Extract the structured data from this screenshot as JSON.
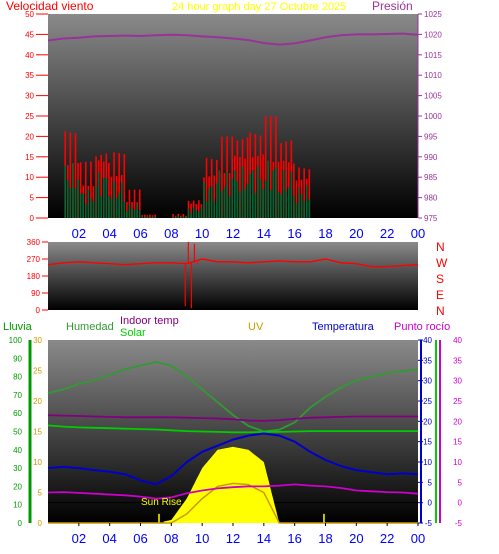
{
  "header": {
    "left_label": "Velocidad viento",
    "center_label": "24 hour graph day   27 Octubre 2025",
    "right_label": "Presión"
  },
  "colors": {
    "wind": "#ff0000",
    "gust": "#ff0000",
    "pressure": "#993399",
    "direction": "#ff0000",
    "compass": "#ff0000",
    "rain": "#009900",
    "humidity": "#339933",
    "indoor_temp": "#800080",
    "solar": "#00cc00",
    "uv": "#cc9900",
    "temperature": "#0000cc",
    "dewpoint": "#cc00cc",
    "sun": "#ffff00",
    "hours": "#0000ff",
    "background_top": "#808080",
    "background_bottom": "#000000"
  },
  "hours": [
    "02",
    "04",
    "06",
    "08",
    "10",
    "12",
    "14",
    "16",
    "18",
    "20",
    "22",
    "00"
  ],
  "top_panel": {
    "left_ticks": [
      "0",
      "5",
      "10",
      "15",
      "20",
      "25",
      "30",
      "35",
      "40",
      "45",
      "50"
    ],
    "right_ticks": [
      "975",
      "980",
      "985",
      "990",
      "995",
      "1000",
      "1005",
      "1010",
      "1015",
      "1020",
      "1025"
    ]
  },
  "dir_panel": {
    "left_ticks": [
      "0",
      "90",
      "180",
      "270",
      "360"
    ],
    "compass": [
      "N",
      "W",
      "S",
      "E",
      "N"
    ]
  },
  "bottom_panel": {
    "legend": {
      "rain": "Lluvia",
      "humidity": "Humedad",
      "indoor": "Indoor temp",
      "solar": "Solar",
      "uv": "UV",
      "temperature": "Temperatura",
      "dewpoint": "Punto rocío"
    },
    "rain_ticks": [
      "0",
      "10",
      "20",
      "30",
      "40",
      "50",
      "60",
      "70",
      "80",
      "90",
      "100"
    ],
    "uv_ticks": [
      "0",
      "5",
      "10",
      "15",
      "20",
      "25",
      "30"
    ],
    "temp_ticks": [
      "-5",
      "0",
      "5",
      "10",
      "15",
      "20",
      "25",
      "30",
      "35",
      "40"
    ],
    "sunrise_label": "Sun Rise"
  },
  "chart_data": [
    {
      "type": "line",
      "x_unit": "hour of day",
      "x": [
        0,
        1,
        2,
        3,
        4,
        5,
        6,
        7,
        8,
        9,
        10,
        11,
        12,
        13,
        14,
        15,
        16,
        17,
        18,
        19,
        20,
        21,
        22,
        23,
        24
      ],
      "ylim_left": [
        0,
        50
      ],
      "ylim_right": [
        975,
        1025
      ],
      "series": [
        {
          "axis": "left",
          "style": "bars",
          "values": [
            0,
            15,
            8,
            13,
            10,
            4,
            0.5,
            0,
            0.5,
            3,
            10,
            13,
            14,
            15,
            16,
            13,
            9,
            0,
            0,
            0,
            0,
            0,
            0,
            0,
            0
          ]
        },
        {
          "axis": "left",
          "style": "bars",
          "values": [
            0,
            22,
            14,
            19,
            17,
            7,
            1,
            0,
            1,
            5,
            16,
            20,
            22,
            23,
            25,
            21,
            14,
            0,
            0,
            0,
            0,
            0,
            0,
            0,
            0
          ]
        },
        {
          "axis": "right",
          "style": "line",
          "values": [
            1018.5,
            1019.0,
            1019.2,
            1019.5,
            1019.6,
            1019.7,
            1019.6,
            1019.8,
            1019.9,
            1019.8,
            1019.5,
            1019.3,
            1019.0,
            1018.6,
            1017.9,
            1017.5,
            1017.8,
            1018.5,
            1019.3,
            1019.8,
            1020.0,
            1020.0,
            1020.1,
            1020.2,
            1019.9
          ]
        }
      ]
    },
    {
      "type": "line",
      "x_unit": "hour of day",
      "ylim": [
        0,
        360
      ],
      "series": [
        {
          "values": [
            240,
            250,
            255,
            250,
            245,
            240,
            245,
            250,
            250,
            245,
            270,
            255,
            255,
            250,
            255,
            260,
            255,
            255,
            270,
            250,
            245,
            230,
            230,
            235,
            240
          ]
        }
      ]
    },
    {
      "type": "line",
      "x_unit": "hour of day",
      "ylim_rain": [
        0,
        100
      ],
      "ylim_uv": [
        0,
        30
      ],
      "ylim_temp": [
        -5,
        40
      ],
      "series": [
        {
          "axis": "rain",
          "values": [
            71,
            73,
            76,
            78,
            81,
            84,
            86,
            88,
            86,
            80,
            73,
            66,
            59,
            53,
            50,
            51,
            55,
            63,
            69,
            74,
            78,
            80,
            82,
            83,
            84
          ]
        },
        {
          "axis": "temp",
          "values": [
            21.5,
            21.4,
            21.3,
            21.2,
            21.1,
            21.0,
            21.0,
            21.0,
            21.0,
            20.9,
            20.8,
            20.7,
            20.5,
            20.2,
            20.1,
            20.3,
            20.6,
            20.9,
            21.0,
            21.1,
            21.2,
            21.2,
            21.2,
            21.2,
            21.2
          ]
        },
        {
          "axis": "temp",
          "values": [
            19,
            18.7,
            18.5,
            18.4,
            18.3,
            18.2,
            18.1,
            18.0,
            17.8,
            17.6,
            17.5,
            17.4,
            17.3,
            17.3,
            17.4,
            17.4,
            17.5,
            17.6,
            17.6,
            17.6,
            17.6,
            17.6,
            17.6,
            17.6,
            17.6
          ]
        },
        {
          "axis": "temp",
          "values": [
            8.5,
            8.8,
            8.5,
            8.0,
            7.6,
            7.0,
            5.5,
            4.5,
            6.5,
            10,
            12.5,
            14,
            15.5,
            16.5,
            17.0,
            16.5,
            15.0,
            12.5,
            10.5,
            9.0,
            8.0,
            7.5,
            7.0,
            7.2,
            7.0
          ]
        },
        {
          "axis": "temp",
          "values": [
            2.5,
            2.6,
            2.4,
            2.2,
            2.0,
            1.8,
            1.5,
            1.0,
            1.3,
            2.3,
            3.0,
            3.5,
            3.8,
            4.0,
            4.0,
            4.2,
            4.5,
            4.2,
            4.0,
            3.6,
            3.0,
            2.8,
            2.6,
            2.5,
            2.2
          ]
        },
        {
          "axis": "uv",
          "style": "area",
          "values": [
            0,
            0,
            0,
            0,
            0,
            0,
            0,
            0,
            0.5,
            4,
            9,
            12,
            12.5,
            12,
            10,
            0,
            0,
            0,
            0,
            0,
            0,
            0,
            0,
            0,
            0
          ]
        },
        {
          "axis": "uv",
          "values": [
            0,
            0,
            0,
            0,
            0,
            0,
            0,
            0,
            0,
            1.5,
            4,
            6,
            6.5,
            6.3,
            5,
            0,
            0,
            0,
            0,
            0,
            0,
            0,
            0,
            0,
            0
          ]
        }
      ]
    }
  ]
}
